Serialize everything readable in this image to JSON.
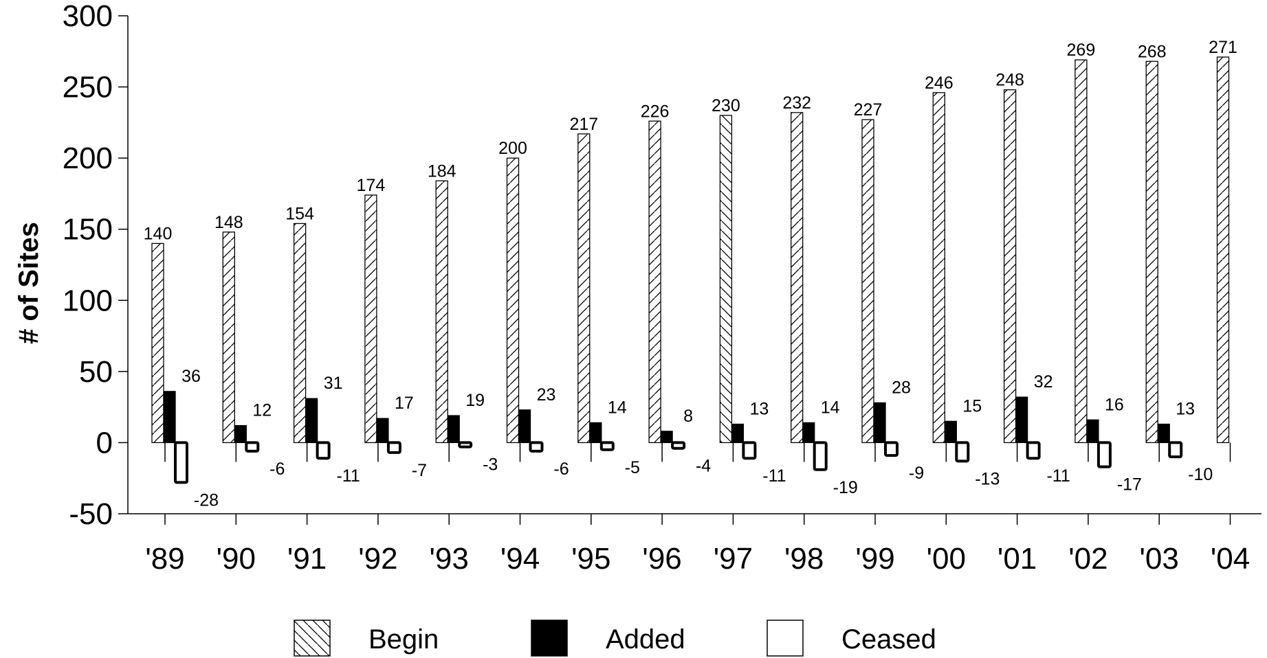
{
  "chart_data": {
    "type": "bar",
    "categories": [
      "'89",
      "'90",
      "'91",
      "'92",
      "'93",
      "'94",
      "'95",
      "'96",
      "'97",
      "'98",
      "'99",
      "'00",
      "'01",
      "'02",
      "'03",
      "'04"
    ],
    "series": [
      {
        "name": "Begin",
        "values": [
          140,
          148,
          154,
          174,
          184,
          200,
          217,
          226,
          230,
          232,
          227,
          246,
          248,
          269,
          268,
          271
        ]
      },
      {
        "name": "Added",
        "values": [
          36,
          12,
          31,
          17,
          19,
          23,
          14,
          8,
          13,
          14,
          28,
          15,
          32,
          16,
          13,
          null
        ]
      },
      {
        "name": "Ceased",
        "values": [
          -28,
          -6,
          -11,
          -7,
          -3,
          -6,
          -5,
          -4,
          -11,
          -19,
          -9,
          -13,
          -11,
          -17,
          -10,
          null
        ]
      }
    ],
    "ylabel": "# of Sites",
    "xlabel": "",
    "ylim": [
      -50,
      300
    ],
    "yticks": [
      -50,
      0,
      50,
      100,
      150,
      200,
      250,
      300
    ],
    "legend_position": "bottom",
    "grid": false,
    "series_fill": {
      "Begin": "hatched",
      "Added": "#000000",
      "Ceased": "#ffffff"
    }
  }
}
